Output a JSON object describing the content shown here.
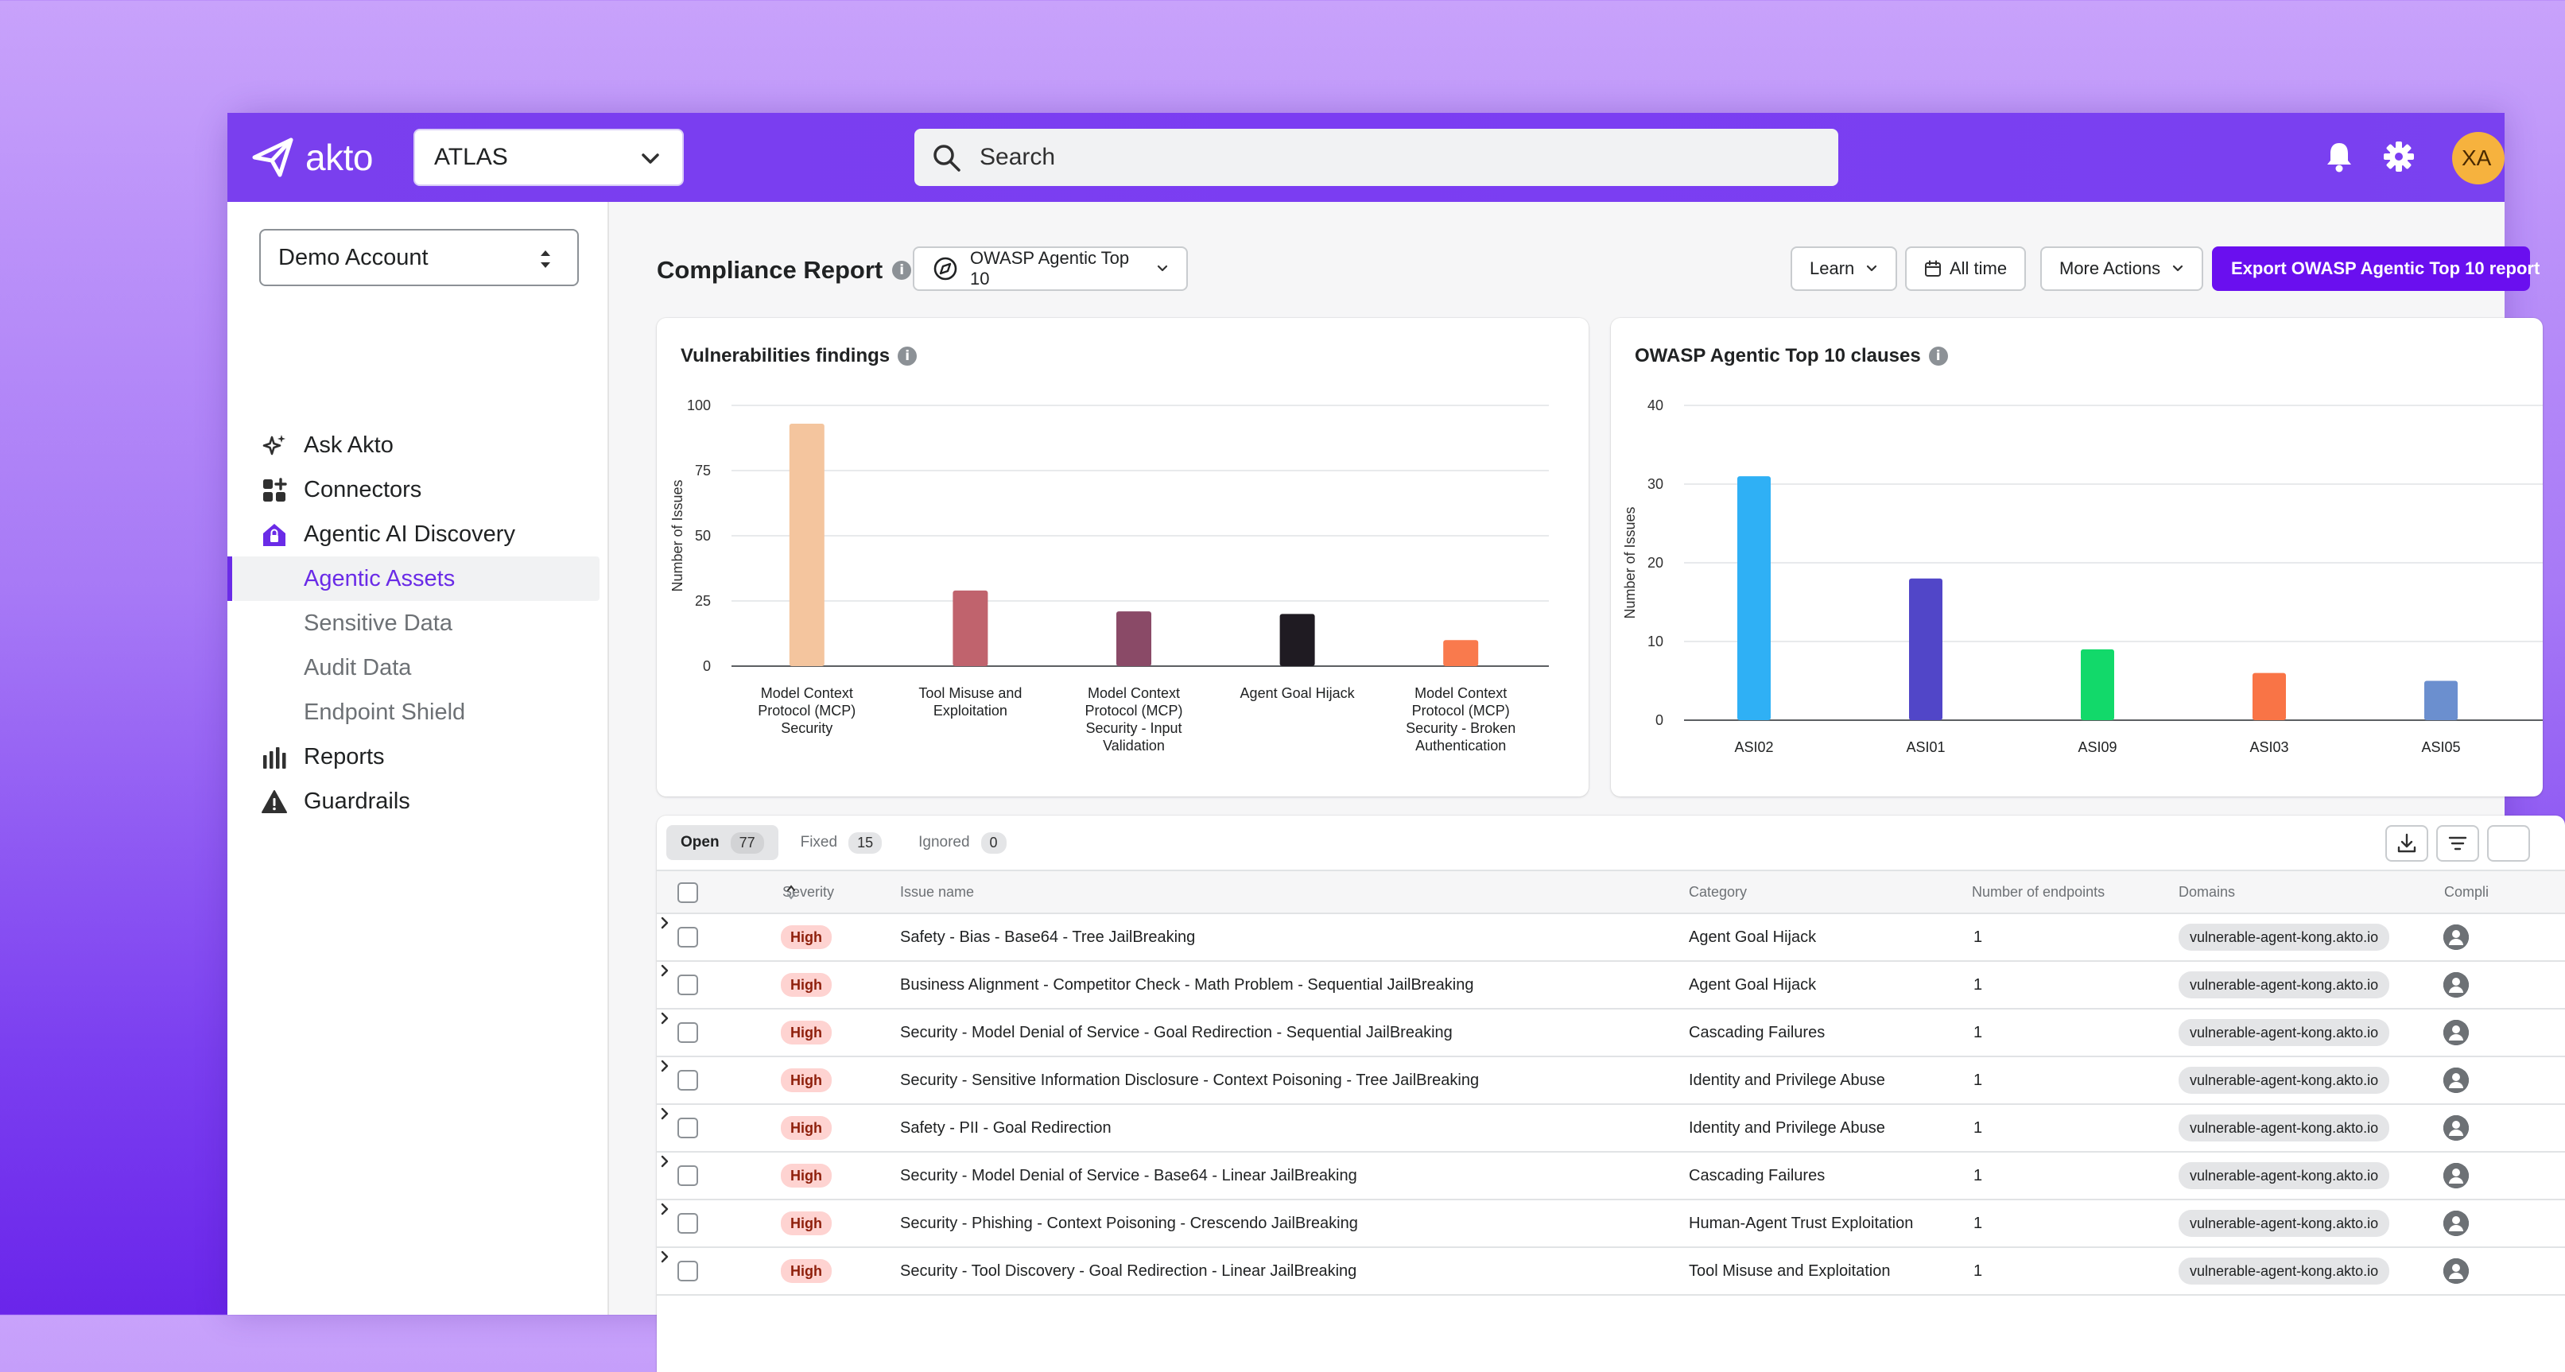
{
  "header": {
    "logo_text": "akto",
    "collection_select": "ATLAS",
    "search_placeholder": "Search",
    "avatar_initials": "XA"
  },
  "sidebar": {
    "account_select": "Demo Account",
    "items": [
      {
        "label": "Ask Akto",
        "icon": "sparkle-icon"
      },
      {
        "label": "Connectors",
        "icon": "grid-plus-icon"
      },
      {
        "label": "Agentic AI Discovery",
        "icon": "house-lock-icon"
      },
      {
        "label": "Agentic Assets",
        "sub": true,
        "active": true
      },
      {
        "label": "Sensitive Data",
        "sub": true
      },
      {
        "label": "Audit Data",
        "sub": true
      },
      {
        "label": "Endpoint Shield",
        "sub": true
      },
      {
        "label": "Reports",
        "icon": "bar-chart-icon"
      },
      {
        "label": "Guardrails",
        "icon": "warning-icon"
      }
    ]
  },
  "page": {
    "title": "Compliance Report",
    "framework_select": "OWASP Agentic Top 10",
    "learn_label": "Learn",
    "time_label": "All time",
    "more_actions_label": "More Actions",
    "export_label": "Export OWASP Agentic Top 10 report"
  },
  "chart_data": [
    {
      "type": "bar",
      "title": "Vulnerabilities findings",
      "ylabel": "Number of Issues",
      "ylim": [
        0,
        100
      ],
      "yticks": [
        0,
        25,
        50,
        75,
        100
      ],
      "categories": [
        [
          "Model Context",
          "Protocol (MCP)",
          "Security"
        ],
        [
          "Tool Misuse and",
          "Exploitation"
        ],
        [
          "Model Context",
          "Protocol (MCP)",
          "Security - Input",
          "Validation"
        ],
        [
          "Agent Goal Hijack"
        ],
        [
          "Model Context",
          "Protocol (MCP)",
          "Security - Broken",
          "Authentication"
        ]
      ],
      "values": [
        93,
        29,
        21,
        20,
        10
      ],
      "colors": [
        "#f4c59e",
        "#c0636d",
        "#8a4a67",
        "#1f1b22",
        "#f97a4d"
      ]
    },
    {
      "type": "bar",
      "title": "OWASP Agentic Top 10 clauses",
      "ylabel": "Number of Issues",
      "ylim": [
        0,
        40
      ],
      "yticks": [
        0,
        10,
        20,
        30,
        40
      ],
      "categories": [
        "ASI02",
        "ASI01",
        "ASI09",
        "ASI03",
        "ASI05"
      ],
      "values": [
        31,
        18,
        9,
        6,
        5
      ],
      "colors": [
        "#2fb0f5",
        "#5146c8",
        "#12d96a",
        "#f97446",
        "#6b8fcf"
      ]
    }
  ],
  "issues": {
    "tabs": [
      {
        "label": "Open",
        "count": "77"
      },
      {
        "label": "Fixed",
        "count": "15"
      },
      {
        "label": "Ignored",
        "count": "0"
      }
    ],
    "columns": {
      "severity": "Severity",
      "issue_name": "Issue name",
      "category": "Category",
      "endpoints": "Number of endpoints",
      "domains": "Domains",
      "compliance": "Compli"
    },
    "rows": [
      {
        "severity": "High",
        "name": "Safety - Bias - Base64 - Tree JailBreaking",
        "category": "Agent Goal Hijack",
        "endpoints": "1",
        "domain": "vulnerable-agent-kong.akto.io"
      },
      {
        "severity": "High",
        "name": "Business Alignment - Competitor Check - Math Problem - Sequential JailBreaking",
        "category": "Agent Goal Hijack",
        "endpoints": "1",
        "domain": "vulnerable-agent-kong.akto.io"
      },
      {
        "severity": "High",
        "name": "Security - Model Denial of Service - Goal Redirection - Sequential JailBreaking",
        "category": "Cascading Failures",
        "endpoints": "1",
        "domain": "vulnerable-agent-kong.akto.io"
      },
      {
        "severity": "High",
        "name": "Security - Sensitive Information Disclosure - Context Poisoning - Tree JailBreaking",
        "category": "Identity and Privilege Abuse",
        "endpoints": "1",
        "domain": "vulnerable-agent-kong.akto.io"
      },
      {
        "severity": "High",
        "name": "Safety - PII - Goal Redirection",
        "category": "Identity and Privilege Abuse",
        "endpoints": "1",
        "domain": "vulnerable-agent-kong.akto.io"
      },
      {
        "severity": "High",
        "name": "Security - Model Denial of Service - Base64 - Linear JailBreaking",
        "category": "Cascading Failures",
        "endpoints": "1",
        "domain": "vulnerable-agent-kong.akto.io"
      },
      {
        "severity": "High",
        "name": "Security - Phishing - Context Poisoning - Crescendo JailBreaking",
        "category": "Human-Agent Trust Exploitation",
        "endpoints": "1",
        "domain": "vulnerable-agent-kong.akto.io"
      },
      {
        "severity": "High",
        "name": "Security - Tool Discovery - Goal Redirection - Linear JailBreaking",
        "category": "Tool Misuse and Exploitation",
        "endpoints": "1",
        "domain": "vulnerable-agent-kong.akto.io"
      }
    ]
  }
}
